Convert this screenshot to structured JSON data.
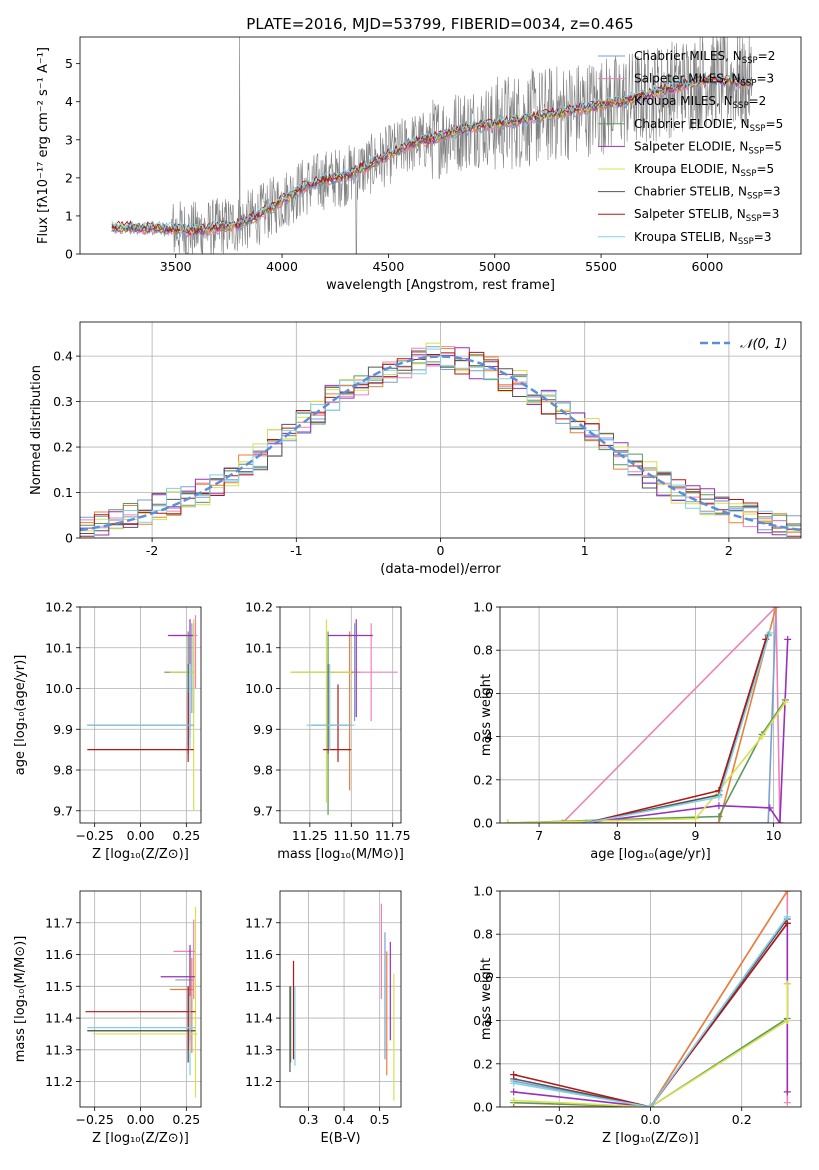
{
  "figure": {
    "title": "PLATE=2016, MJD=53799, FIBERID=0034, z=0.465"
  },
  "series_styles": [
    {
      "name": "Chabrier MILES, N",
      "sub": "SSP",
      "suffix": "=2",
      "color": "#7a9fd0"
    },
    {
      "name": "Salpeter MILES, N",
      "sub": "SSP",
      "suffix": "=3",
      "color": "#ee82b8"
    },
    {
      "name": "Kroupa MILES, N",
      "sub": "SSP",
      "suffix": "=2",
      "color": "#e8803a"
    },
    {
      "name": "Chabrier ELODIE, N",
      "sub": "SSP",
      "suffix": "=5",
      "color": "#5a9a5a"
    },
    {
      "name": "Salpeter ELODIE, N",
      "sub": "SSP",
      "suffix": "=5",
      "color": "#9a30b8"
    },
    {
      "name": "Kroupa ELODIE, N",
      "sub": "SSP",
      "suffix": "=5",
      "color": "#d8e050"
    },
    {
      "name": "Chabrier STELIB, N",
      "sub": "SSP",
      "suffix": "=3",
      "color": "#555555"
    },
    {
      "name": "Salpeter STELIB, N",
      "sub": "SSP",
      "suffix": "=3",
      "color": "#b01818"
    },
    {
      "name": "Kroupa STELIB, N",
      "sub": "SSP",
      "suffix": "=3",
      "color": "#80d0e8"
    }
  ],
  "chart_data": [
    {
      "id": "spectrum",
      "type": "line",
      "xlabel": "wavelength [Angstrom, rest frame]",
      "ylabel": "Flux [fλ10⁻¹⁷ erg cm⁻² s⁻¹ A⁻¹]",
      "xlim": [
        3050,
        6440
      ],
      "ylim": [
        0,
        5.7
      ],
      "xticks": [
        3500,
        4000,
        4500,
        5000,
        5500,
        6000
      ],
      "yticks": [
        0,
        1,
        2,
        3,
        4,
        5
      ],
      "legend": "right",
      "data_color": "#808080",
      "model_continuum": {
        "x": [
          3200,
          3400,
          3600,
          3800,
          3900,
          4000,
          4100,
          4200,
          4300,
          4400,
          4500,
          4600,
          4700,
          4800,
          4900,
          5000,
          5200,
          5400,
          5600,
          5800,
          6000,
          6200
        ],
        "y": [
          0.7,
          0.68,
          0.6,
          0.78,
          1.05,
          1.4,
          1.75,
          1.95,
          2.05,
          2.3,
          2.6,
          2.9,
          3.0,
          3.2,
          3.35,
          3.4,
          3.6,
          3.8,
          4.0,
          4.3,
          4.6,
          4.5
        ]
      }
    },
    {
      "id": "residuals",
      "type": "bar",
      "xlabel": "(data-model)/error",
      "ylabel": "Normed distribution",
      "xlim": [
        -2.5,
        2.5
      ],
      "ylim": [
        0,
        0.475
      ],
      "xticks": [
        -2,
        -1,
        0,
        1,
        2
      ],
      "yticks": [
        0,
        0.1,
        0.2,
        0.3,
        0.4
      ],
      "legend_label": "𝒩(0, 1)",
      "gaussian_color": "#5b8fd8",
      "bin_width": 0.1,
      "hist_base": [
        0.02,
        0.03,
        0.04,
        0.05,
        0.06,
        0.07,
        0.08,
        0.09,
        0.1,
        0.12,
        0.14,
        0.16,
        0.18,
        0.21,
        0.24,
        0.26,
        0.28,
        0.31,
        0.32,
        0.34,
        0.35,
        0.37,
        0.38,
        0.39,
        0.4,
        0.4,
        0.39,
        0.38,
        0.37,
        0.35,
        0.34,
        0.32,
        0.3,
        0.28,
        0.26,
        0.24,
        0.21,
        0.18,
        0.16,
        0.14,
        0.12,
        0.1,
        0.09,
        0.08,
        0.07,
        0.06,
        0.05,
        0.04,
        0.03,
        0.02
      ]
    },
    {
      "id": "age-vs-Z",
      "type": "scatter",
      "xlabel": "Z [log₁₀(Z/Z⊙)]",
      "ylabel": "age  [log₁₀(age/yr)]",
      "xlim": [
        -0.33,
        0.33
      ],
      "ylim": [
        9.67,
        10.2
      ],
      "xticks": [
        -0.25,
        0.0,
        0.25
      ],
      "xticklabels": [
        "−0.25",
        "0.00",
        "0.25"
      ],
      "yticks": [
        9.7,
        9.8,
        9.9,
        10.0,
        10.1,
        10.2
      ],
      "yticklabels": [
        "9.7",
        "9.8",
        "9.9",
        "10.0",
        "10.1",
        "10.2"
      ],
      "points": [
        {
          "x": 0.28,
          "y": 10.04,
          "xerr": [
            0.12,
            0.02
          ],
          "yerr": [
            0.1,
            0.12
          ],
          "s": 0
        },
        {
          "x": 0.3,
          "y": 10.13,
          "xerr": [
            0.13,
            0.01
          ],
          "yerr": [
            0.13,
            0.05
          ],
          "s": 1
        },
        {
          "x": 0.29,
          "y": 10.04,
          "xerr": [
            0.13,
            0.01
          ],
          "yerr": [
            0.1,
            0.12
          ],
          "s": 2
        },
        {
          "x": 0.26,
          "y": 10.04,
          "xerr": [
            0.13,
            0.03
          ],
          "yerr": [
            0.18,
            0.1
          ],
          "s": 3
        },
        {
          "x": 0.27,
          "y": 10.13,
          "xerr": [
            0.12,
            0.02
          ],
          "yerr": [
            0.25,
            0.04
          ],
          "s": 4
        },
        {
          "x": 0.29,
          "y": 10.04,
          "xerr": [
            0.13,
            0.01
          ],
          "yerr": [
            0.34,
            0.13
          ],
          "s": 5
        },
        {
          "x": 0.26,
          "y": 9.91,
          "xerr": [
            0.55,
            0.03
          ],
          "yerr": [
            0.07,
            0.15
          ],
          "s": 6
        },
        {
          "x": 0.26,
          "y": 9.85,
          "xerr": [
            0.55,
            0.03
          ],
          "yerr": [
            0.03,
            0.14
          ],
          "s": 7
        },
        {
          "x": 0.27,
          "y": 9.91,
          "xerr": [
            0.56,
            0.02
          ],
          "yerr": [
            0.06,
            0.15
          ],
          "s": 8
        }
      ]
    },
    {
      "id": "age-vs-mass",
      "type": "scatter",
      "xlabel": "mass [log₁₀(M/M⊙)]",
      "ylabel": "",
      "xlim": [
        11.07,
        11.8
      ],
      "ylim": [
        9.67,
        10.2
      ],
      "xticks": [
        11.25,
        11.5,
        11.75
      ],
      "xticklabels": [
        "11.25",
        "11.50",
        "11.75"
      ],
      "yticks": [
        9.7,
        9.8,
        9.9,
        10.0,
        10.1,
        10.2
      ],
      "yticklabels": [
        "9.7",
        "9.8",
        "9.9",
        "10.0",
        "10.1",
        "10.2"
      ],
      "points": [
        {
          "x": 11.52,
          "y": 10.04,
          "xerr": [
            0.14,
            0.04
          ],
          "yerr": [
            0.12,
            0.12
          ],
          "s": 0
        },
        {
          "x": 11.62,
          "y": 10.04,
          "xerr": [
            0.14,
            0.16
          ],
          "yerr": [
            0.12,
            0.12
          ],
          "s": 1
        },
        {
          "x": 11.49,
          "y": 10.04,
          "xerr": [
            0.14,
            0.04
          ],
          "yerr": [
            0.29,
            0.1
          ],
          "s": 2
        },
        {
          "x": 11.36,
          "y": 10.04,
          "xerr": [
            0.22,
            0.04
          ],
          "yerr": [
            0.35,
            0.1
          ],
          "s": 3
        },
        {
          "x": 11.53,
          "y": 10.13,
          "xerr": [
            0.17,
            0.1
          ],
          "yerr": [
            0.2,
            0.04
          ],
          "s": 4
        },
        {
          "x": 11.35,
          "y": 10.04,
          "xerr": [
            0.22,
            0.15
          ],
          "yerr": [
            0.32,
            0.13
          ],
          "s": 5
        },
        {
          "x": 11.36,
          "y": 9.91,
          "xerr": [
            0.1,
            0.14
          ],
          "yerr": [
            0.07,
            0.15
          ],
          "s": 6
        },
        {
          "x": 11.42,
          "y": 9.85,
          "xerr": [
            0.09,
            0.08
          ],
          "yerr": [
            0.03,
            0.16
          ],
          "s": 7
        },
        {
          "x": 11.37,
          "y": 9.91,
          "xerr": [
            0.14,
            0.15
          ],
          "yerr": [
            0.06,
            0.15
          ],
          "s": 8
        }
      ]
    },
    {
      "id": "weight-vs-age",
      "type": "line",
      "xlabel": "age  [log₁₀(age/yr)]",
      "ylabel": "mass weight",
      "xlim": [
        6.5,
        10.35
      ],
      "ylim": [
        0,
        1.0
      ],
      "xticks": [
        7,
        8,
        9,
        10
      ],
      "xticklabels": [
        "7",
        "8",
        "9",
        "10"
      ],
      "yticks": [
        0,
        0.2,
        0.4,
        0.6,
        0.8,
        1.0
      ],
      "yticklabels": [
        "0.0",
        "0.2",
        "0.4",
        "0.6",
        "0.8",
        "1.0"
      ],
      "series": [
        {
          "s": 0,
          "x": [
            7.3,
            9.3,
            9.93,
            10.03
          ],
          "y": [
            0.0,
            0.0,
            0.0,
            1.0
          ]
        },
        {
          "s": 1,
          "x": [
            7.3,
            10.03,
            10.08
          ],
          "y": [
            0.0,
            1.0,
            0.0
          ]
        },
        {
          "s": 2,
          "x": [
            7.3,
            9.3,
            10.03
          ],
          "y": [
            0.0,
            0.0,
            1.0
          ]
        },
        {
          "s": 3,
          "x": [
            6.6,
            9.3,
            9.85,
            10.15
          ],
          "y": [
            0.0,
            0.03,
            0.41,
            0.57
          ]
        },
        {
          "s": 4,
          "x": [
            7.6,
            9.3,
            9.95,
            10.08,
            10.18
          ],
          "y": [
            0.0,
            0.08,
            0.07,
            0.0,
            0.85
          ]
        },
        {
          "s": 5,
          "x": [
            6.6,
            9.0,
            9.3,
            9.85,
            10.15
          ],
          "y": [
            0.0,
            0.02,
            0.15,
            0.4,
            0.56
          ]
        },
        {
          "s": 6,
          "x": [
            7.6,
            9.3,
            9.93
          ],
          "y": [
            0.0,
            0.13,
            0.87
          ]
        },
        {
          "s": 7,
          "x": [
            7.6,
            9.3,
            9.9
          ],
          "y": [
            0.0,
            0.15,
            0.85
          ]
        },
        {
          "s": 8,
          "x": [
            7.6,
            9.3,
            9.95
          ],
          "y": [
            0.0,
            0.12,
            0.88
          ]
        }
      ]
    },
    {
      "id": "mass-vs-Z",
      "type": "scatter",
      "xlabel": "Z [log₁₀(Z/Z⊙)]",
      "ylabel": "mass [log₁₀(M/M⊙)]",
      "xlim": [
        -0.33,
        0.33
      ],
      "ylim": [
        11.12,
        11.8
      ],
      "xticks": [
        -0.25,
        0.0,
        0.25
      ],
      "xticklabels": [
        "−0.25",
        "0.00",
        "0.25"
      ],
      "yticks": [
        11.2,
        11.3,
        11.4,
        11.5,
        11.6,
        11.7
      ],
      "yticklabels": [
        "11.2",
        "11.3",
        "11.4",
        "11.5",
        "11.6",
        "11.7"
      ],
      "points": [
        {
          "x": 0.27,
          "y": 11.52,
          "xerr": [
            0.08,
            0.02
          ],
          "yerr": [
            0.2,
            0.1
          ],
          "s": 0
        },
        {
          "x": 0.29,
          "y": 11.61,
          "xerr": [
            0.11,
            0.01
          ],
          "yerr": [
            0.15,
            0.1
          ],
          "s": 1
        },
        {
          "x": 0.28,
          "y": 11.49,
          "xerr": [
            0.12,
            0.01
          ],
          "yerr": [
            0.2,
            0.1
          ],
          "s": 2
        },
        {
          "x": 0.26,
          "y": 11.36,
          "xerr": [
            0.55,
            0.04
          ],
          "yerr": [
            0.1,
            0.14
          ],
          "s": 3
        },
        {
          "x": 0.27,
          "y": 11.53,
          "xerr": [
            0.16,
            0.03
          ],
          "yerr": [
            0.2,
            0.1
          ],
          "s": 4
        },
        {
          "x": 0.3,
          "y": 11.35,
          "xerr": [
            0.56,
            0.01
          ],
          "yerr": [
            0.2,
            0.4
          ],
          "s": 5
        },
        {
          "x": 0.26,
          "y": 11.36,
          "xerr": [
            0.55,
            0.04
          ],
          "yerr": [
            0.1,
            0.12
          ],
          "s": 6
        },
        {
          "x": 0.26,
          "y": 11.42,
          "xerr": [
            0.56,
            0.04
          ],
          "yerr": [
            0.12,
            0.08
          ],
          "s": 7
        },
        {
          "x": 0.27,
          "y": 11.37,
          "xerr": [
            0.56,
            0.03
          ],
          "yerr": [
            0.15,
            0.1
          ],
          "s": 8
        }
      ]
    },
    {
      "id": "mass-vs-EBV",
      "type": "scatter",
      "xlabel": "E(B-V)",
      "ylabel": "",
      "xlim": [
        0.22,
        0.56
      ],
      "ylim": [
        11.12,
        11.8
      ],
      "xticks": [
        0.3,
        0.4,
        0.5
      ],
      "xticklabels": [
        "0.3",
        "0.4",
        "0.5"
      ],
      "yticks": [
        11.2,
        11.3,
        11.4,
        11.5,
        11.6,
        11.7
      ],
      "yticklabels": [
        "11.2",
        "11.3",
        "11.4",
        "11.5",
        "11.6",
        "11.7"
      ],
      "points": [
        {
          "x": 0.515,
          "y": 11.52,
          "xerr": [
            0,
            0
          ],
          "yerr": [
            0.25,
            0.15
          ],
          "s": 0
        },
        {
          "x": 0.505,
          "y": 11.61,
          "xerr": [
            0,
            0
          ],
          "yerr": [
            0.15,
            0.15
          ],
          "s": 1
        },
        {
          "x": 0.52,
          "y": 11.49,
          "xerr": [
            0,
            0
          ],
          "yerr": [
            0.27,
            0.12
          ],
          "s": 2
        },
        {
          "x": 0.25,
          "y": 11.36,
          "xerr": [
            0,
            0
          ],
          "yerr": [
            0.1,
            0.14
          ],
          "s": 3
        },
        {
          "x": 0.53,
          "y": 11.53,
          "xerr": [
            0,
            0
          ],
          "yerr": [
            0.2,
            0.11
          ],
          "s": 4
        },
        {
          "x": 0.54,
          "y": 11.35,
          "xerr": [
            0,
            0
          ],
          "yerr": [
            0.21,
            0.19
          ],
          "s": 5
        },
        {
          "x": 0.248,
          "y": 11.36,
          "xerr": [
            0,
            0
          ],
          "yerr": [
            0.13,
            0.14
          ],
          "s": 6
        },
        {
          "x": 0.258,
          "y": 11.42,
          "xerr": [
            0,
            0
          ],
          "yerr": [
            0.15,
            0.16
          ],
          "s": 7
        },
        {
          "x": 0.262,
          "y": 11.37,
          "xerr": [
            0,
            0
          ],
          "yerr": [
            0.12,
            0.13
          ],
          "s": 8
        }
      ]
    },
    {
      "id": "weight-vs-Z",
      "type": "line",
      "xlabel": "Z [log₁₀(Z/Z⊙)]",
      "ylabel": "mass weight",
      "xlim": [
        -0.33,
        0.33
      ],
      "ylim": [
        0,
        1.0
      ],
      "xticks": [
        -0.2,
        0.0,
        0.2
      ],
      "xticklabels": [
        "−0.2",
        "0.0",
        "0.2"
      ],
      "yticks": [
        0,
        0.2,
        0.4,
        0.6,
        0.8,
        1.0
      ],
      "yticklabels": [
        "0.0",
        "0.2",
        "0.4",
        "0.6",
        "0.8",
        "1.0"
      ],
      "series": [
        {
          "s": 0,
          "x": [
            -0.3,
            0.0,
            0.3
          ],
          "y": [
            0.12,
            0.0,
            0.88
          ]
        },
        {
          "s": 1,
          "x": [
            -0.3,
            0.0,
            0.3,
            0.3
          ],
          "y": [
            0.0,
            0.0,
            1.0,
            0.02
          ]
        },
        {
          "s": 2,
          "x": [
            -0.3,
            0.0,
            0.3
          ],
          "y": [
            0.0,
            0.0,
            1.0
          ]
        },
        {
          "s": 3,
          "x": [
            -0.3,
            0.0,
            0.3,
            0.3
          ],
          "y": [
            0.02,
            0.0,
            0.41,
            0.57
          ]
        },
        {
          "s": 4,
          "x": [
            -0.3,
            0.0,
            0.3,
            0.3
          ],
          "y": [
            0.07,
            0.0,
            0.85,
            0.07
          ]
        },
        {
          "s": 5,
          "x": [
            -0.3,
            0.0,
            0.3,
            0.3
          ],
          "y": [
            0.03,
            0.0,
            0.4,
            0.57
          ]
        },
        {
          "s": 6,
          "x": [
            -0.3,
            0.0,
            0.3
          ],
          "y": [
            0.13,
            0.0,
            0.87
          ]
        },
        {
          "s": 7,
          "x": [
            -0.3,
            0.0,
            0.3
          ],
          "y": [
            0.15,
            0.0,
            0.85
          ]
        },
        {
          "s": 8,
          "x": [
            -0.3,
            0.0,
            0.3
          ],
          "y": [
            0.11,
            0.0,
            0.88
          ]
        }
      ]
    }
  ]
}
